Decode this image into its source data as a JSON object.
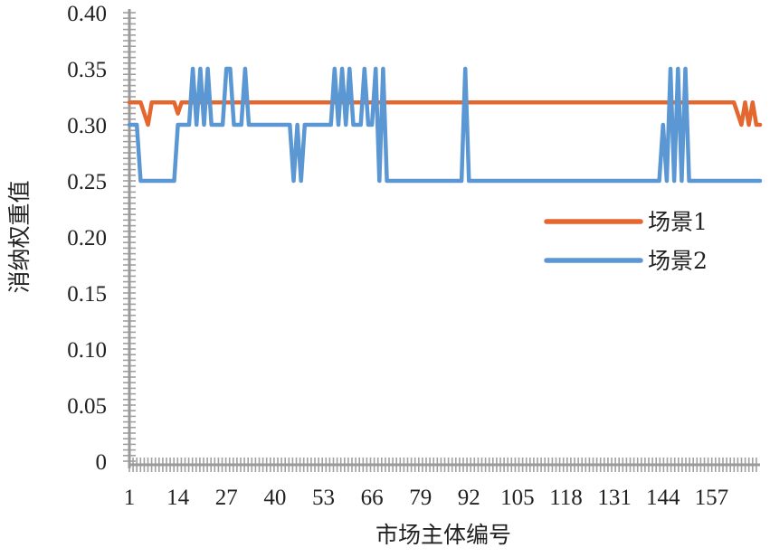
{
  "chart_data": {
    "type": "line",
    "xlabel": "市场主体编号",
    "ylabel": "消纳权重值",
    "x_range": [
      1,
      170
    ],
    "ylim": [
      0,
      0.4
    ],
    "x_ticks": [
      "1",
      "14",
      "27",
      "40",
      "53",
      "66",
      "79",
      "92",
      "105",
      "118",
      "131",
      "144",
      "157"
    ],
    "y_ticks": [
      "0",
      "0.05",
      "0.10",
      "0.15",
      "0.20",
      "0.25",
      "0.30",
      "0.35",
      "0.40"
    ],
    "legend_position": "right-middle",
    "grid": false,
    "series": [
      {
        "name": "场景1",
        "color": "#E4672F",
        "points": [
          [
            1,
            0.32
          ],
          [
            3,
            0.32
          ],
          [
            4,
            0.32
          ],
          [
            5,
            0.31
          ],
          [
            6,
            0.3
          ],
          [
            7,
            0.32
          ],
          [
            8,
            0.32
          ],
          [
            13,
            0.32
          ],
          [
            14,
            0.31
          ],
          [
            15,
            0.32
          ],
          [
            163,
            0.32
          ],
          [
            164,
            0.31
          ],
          [
            165,
            0.3
          ],
          [
            166,
            0.32
          ],
          [
            167,
            0.3
          ],
          [
            168,
            0.32
          ],
          [
            169,
            0.3
          ],
          [
            170,
            0.3
          ]
        ]
      },
      {
        "name": "场景2",
        "color": "#5B97D2",
        "points": [
          [
            1,
            0.3
          ],
          [
            3,
            0.3
          ],
          [
            4,
            0.25
          ],
          [
            13,
            0.25
          ],
          [
            14,
            0.3
          ],
          [
            17,
            0.3
          ],
          [
            18,
            0.35
          ],
          [
            19,
            0.3
          ],
          [
            20,
            0.35
          ],
          [
            21,
            0.3
          ],
          [
            22,
            0.35
          ],
          [
            23,
            0.3
          ],
          [
            26,
            0.3
          ],
          [
            27,
            0.35
          ],
          [
            28,
            0.35
          ],
          [
            29,
            0.3
          ],
          [
            31,
            0.3
          ],
          [
            32,
            0.35
          ],
          [
            33,
            0.3
          ],
          [
            44,
            0.3
          ],
          [
            45,
            0.25
          ],
          [
            46,
            0.3
          ],
          [
            47,
            0.25
          ],
          [
            48,
            0.3
          ],
          [
            55,
            0.3
          ],
          [
            56,
            0.35
          ],
          [
            57,
            0.3
          ],
          [
            58,
            0.35
          ],
          [
            59,
            0.3
          ],
          [
            60,
            0.35
          ],
          [
            61,
            0.3
          ],
          [
            63,
            0.3
          ],
          [
            64,
            0.35
          ],
          [
            65,
            0.3
          ],
          [
            66,
            0.3
          ],
          [
            67,
            0.35
          ],
          [
            68,
            0.25
          ],
          [
            69,
            0.35
          ],
          [
            70,
            0.25
          ],
          [
            72,
            0.25
          ],
          [
            73,
            0.25
          ],
          [
            90,
            0.25
          ],
          [
            91,
            0.35
          ],
          [
            92,
            0.25
          ],
          [
            143,
            0.25
          ],
          [
            144,
            0.3
          ],
          [
            145,
            0.25
          ],
          [
            146,
            0.35
          ],
          [
            147,
            0.25
          ],
          [
            148,
            0.35
          ],
          [
            149,
            0.25
          ],
          [
            150,
            0.35
          ],
          [
            151,
            0.25
          ],
          [
            170,
            0.25
          ]
        ]
      }
    ]
  }
}
